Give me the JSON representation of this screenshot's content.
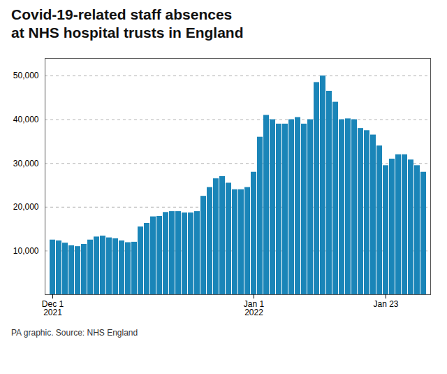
{
  "chart_data": {
    "type": "bar",
    "title": "Covid-19-related staff absences\nat NHS hospital trusts in England",
    "caption": "PA graphic. Source: NHS England",
    "categories": [
      "Dec 1\n2021",
      null,
      null,
      null,
      null,
      null,
      null,
      null,
      null,
      null,
      null,
      null,
      null,
      null,
      null,
      null,
      null,
      null,
      null,
      null,
      null,
      null,
      null,
      null,
      null,
      null,
      null,
      null,
      null,
      null,
      null,
      null,
      "Jan 1\n2022",
      null,
      null,
      null,
      null,
      null,
      null,
      null,
      null,
      null,
      null,
      null,
      null,
      null,
      null,
      null,
      null,
      null,
      null,
      null,
      null,
      "Jan 23",
      null,
      null,
      null,
      null,
      null,
      null
    ],
    "values": [
      12500,
      12300,
      11800,
      11200,
      11000,
      11500,
      12500,
      13200,
      13400,
      13000,
      12800,
      12300,
      11900,
      12000,
      15500,
      16300,
      17800,
      17900,
      18800,
      19000,
      19000,
      18700,
      18700,
      19000,
      22500,
      24500,
      26500,
      27000,
      25500,
      24000,
      24000,
      24500,
      28000,
      36000,
      41000,
      40000,
      39000,
      39000,
      40000,
      40500,
      39000,
      40000,
      48500,
      50000,
      46500,
      44000,
      40000,
      40200,
      40000,
      38000,
      37500,
      36500,
      34000,
      29500,
      31000,
      32000,
      32000,
      30800,
      29500,
      28000
    ],
    "color": "#1a85b8",
    "ylim": [
      0,
      54000
    ],
    "yticks": [
      {
        "value": 10000,
        "label": "10,000"
      },
      {
        "value": 20000,
        "label": "20,000"
      },
      {
        "value": 30000,
        "label": "30,000"
      },
      {
        "value": 40000,
        "label": "40,000"
      },
      {
        "value": 50000,
        "label": "50,000"
      }
    ],
    "grid": true
  }
}
